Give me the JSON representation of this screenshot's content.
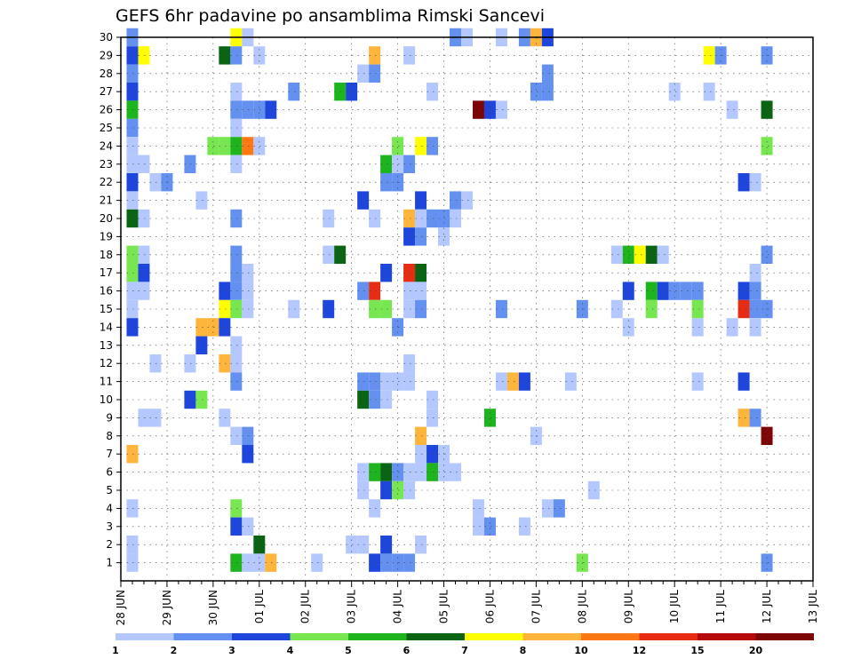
{
  "chart_data": {
    "type": "heatmap",
    "title": "GEFS 6hr padavine po ansamblima Rimski Sancevi",
    "y_ticks": [
      "1",
      "2",
      "3",
      "4",
      "5",
      "6",
      "7",
      "8",
      "9",
      "10",
      "11",
      "12",
      "13",
      "14",
      "15",
      "16",
      "17",
      "18",
      "19",
      "20",
      "21",
      "22",
      "23",
      "24",
      "25",
      "26",
      "27",
      "28",
      "29",
      "30"
    ],
    "x_ticks": [
      "28 JUN",
      "29 JUN",
      "30 JUN",
      "01 JUL",
      "02 JUL",
      "03 JUL",
      "04 JUL",
      "05 JUL",
      "06 JUL",
      "07 JUL",
      "08 JUL",
      "09 JUL",
      "10 JUL",
      "11 JUL",
      "12 JUL",
      "13 JUL"
    ],
    "x_range": [
      "28 JUN 00",
      "13 JUL 00"
    ],
    "time_step_hours": 6,
    "ylim": [
      0,
      30
    ],
    "grid": true,
    "colorbar": {
      "boundaries": [
        1,
        2,
        3,
        4,
        5,
        6,
        7,
        8,
        10,
        12,
        15,
        20
      ],
      "labels": [
        "1",
        "2",
        "3",
        "4",
        "5",
        "6",
        "7",
        "8",
        "10",
        "12",
        "15",
        "20"
      ],
      "colors": [
        "#b4c8ff",
        "#6490f0",
        "#1e46dc",
        "#78e650",
        "#1eb41e",
        "#0a6414",
        "#ffff00",
        "#ffb43c",
        "#ff7814",
        "#e62d14",
        "#b40a0a",
        "#7d0505"
      ]
    },
    "cells_note": "each cell = [6-hour step index from 28 JUN 00, ensemble member, precipitation class 0-11 (index into colorbar.colors)]",
    "cells": [
      [
        1,
        1,
        0
      ],
      [
        1,
        30,
        1
      ],
      [
        1,
        29,
        2
      ],
      [
        1,
        28,
        1
      ],
      [
        1,
        27,
        2
      ],
      [
        1,
        26,
        4
      ],
      [
        1,
        25,
        1
      ],
      [
        1,
        24,
        0
      ],
      [
        1,
        23,
        0
      ],
      [
        1,
        22,
        2
      ],
      [
        1,
        21,
        0
      ],
      [
        1,
        20,
        5
      ],
      [
        1,
        18,
        3
      ],
      [
        1,
        17,
        3
      ],
      [
        1,
        16,
        0
      ],
      [
        1,
        15,
        0
      ],
      [
        1,
        14,
        2
      ],
      [
        1,
        7,
        7
      ],
      [
        1,
        4,
        0
      ],
      [
        1,
        2,
        0
      ],
      [
        2,
        29,
        6
      ],
      [
        2,
        23,
        0
      ],
      [
        2,
        20,
        0
      ],
      [
        2,
        18,
        0
      ],
      [
        2,
        17,
        2
      ],
      [
        2,
        16,
        0
      ],
      [
        2,
        9,
        0
      ],
      [
        3,
        22,
        0
      ],
      [
        3,
        12,
        0
      ],
      [
        3,
        9,
        0
      ],
      [
        4,
        22,
        1
      ],
      [
        6,
        23,
        1
      ],
      [
        6,
        12,
        0
      ],
      [
        6,
        10,
        2
      ],
      [
        7,
        21,
        0
      ],
      [
        7,
        14,
        7
      ],
      [
        7,
        13,
        2
      ],
      [
        7,
        10,
        3
      ],
      [
        8,
        24,
        3
      ],
      [
        8,
        14,
        7
      ],
      [
        9,
        29,
        5
      ],
      [
        9,
        24,
        3
      ],
      [
        9,
        16,
        2
      ],
      [
        9,
        15,
        6
      ],
      [
        9,
        14,
        2
      ],
      [
        9,
        12,
        7
      ],
      [
        9,
        9,
        0
      ],
      [
        10,
        30,
        6
      ],
      [
        10,
        29,
        1
      ],
      [
        10,
        27,
        0
      ],
      [
        10,
        26,
        1
      ],
      [
        10,
        25,
        0
      ],
      [
        10,
        24,
        4
      ],
      [
        10,
        23,
        0
      ],
      [
        10,
        20,
        1
      ],
      [
        10,
        18,
        1
      ],
      [
        10,
        17,
        1
      ],
      [
        10,
        16,
        1
      ],
      [
        10,
        15,
        3
      ],
      [
        10,
        13,
        0
      ],
      [
        10,
        12,
        0
      ],
      [
        10,
        11,
        1
      ],
      [
        10,
        8,
        0
      ],
      [
        10,
        4,
        3
      ],
      [
        10,
        3,
        2
      ],
      [
        10,
        1,
        4
      ],
      [
        11,
        30,
        0
      ],
      [
        11,
        26,
        1
      ],
      [
        11,
        24,
        8
      ],
      [
        11,
        17,
        0
      ],
      [
        11,
        16,
        0
      ],
      [
        11,
        15,
        0
      ],
      [
        11,
        8,
        1
      ],
      [
        11,
        7,
        2
      ],
      [
        11,
        3,
        0
      ],
      [
        11,
        1,
        0
      ],
      [
        12,
        29,
        0
      ],
      [
        12,
        26,
        1
      ],
      [
        12,
        24,
        0
      ],
      [
        12,
        2,
        5
      ],
      [
        12,
        1,
        0
      ],
      [
        13,
        26,
        2
      ],
      [
        13,
        1,
        7
      ],
      [
        15,
        27,
        1
      ],
      [
        15,
        15,
        0
      ],
      [
        17,
        1,
        0
      ],
      [
        18,
        20,
        0
      ],
      [
        18,
        18,
        0
      ],
      [
        18,
        15,
        2
      ],
      [
        19,
        27,
        4
      ],
      [
        19,
        18,
        5
      ],
      [
        20,
        27,
        2
      ],
      [
        20,
        2,
        0
      ],
      [
        21,
        28,
        0
      ],
      [
        21,
        21,
        2
      ],
      [
        21,
        16,
        1
      ],
      [
        21,
        11,
        1
      ],
      [
        21,
        10,
        5
      ],
      [
        21,
        6,
        0
      ],
      [
        21,
        5,
        0
      ],
      [
        21,
        2,
        0
      ],
      [
        22,
        29,
        7
      ],
      [
        22,
        28,
        1
      ],
      [
        22,
        20,
        0
      ],
      [
        22,
        16,
        9
      ],
      [
        22,
        15,
        3
      ],
      [
        22,
        11,
        1
      ],
      [
        22,
        10,
        1
      ],
      [
        22,
        6,
        4
      ],
      [
        22,
        4,
        0
      ],
      [
        22,
        1,
        2
      ],
      [
        23,
        23,
        4
      ],
      [
        23,
        22,
        1
      ],
      [
        23,
        17,
        2
      ],
      [
        23,
        15,
        3
      ],
      [
        23,
        11,
        0
      ],
      [
        23,
        10,
        0
      ],
      [
        23,
        6,
        5
      ],
      [
        23,
        5,
        2
      ],
      [
        23,
        2,
        2
      ],
      [
        23,
        1,
        1
      ],
      [
        24,
        23,
        0
      ],
      [
        24,
        22,
        1
      ],
      [
        24,
        24,
        3
      ],
      [
        24,
        14,
        1
      ],
      [
        24,
        11,
        0
      ],
      [
        24,
        6,
        1
      ],
      [
        24,
        5,
        3
      ],
      [
        24,
        1,
        1
      ],
      [
        25,
        29,
        0
      ],
      [
        25,
        23,
        1
      ],
      [
        25,
        20,
        7
      ],
      [
        25,
        19,
        2
      ],
      [
        25,
        17,
        9
      ],
      [
        25,
        16,
        0
      ],
      [
        25,
        15,
        0
      ],
      [
        25,
        12,
        0
      ],
      [
        25,
        11,
        0
      ],
      [
        25,
        6,
        0
      ],
      [
        25,
        5,
        0
      ],
      [
        25,
        1,
        1
      ],
      [
        26,
        24,
        6
      ],
      [
        26,
        21,
        2
      ],
      [
        26,
        20,
        0
      ],
      [
        26,
        19,
        1
      ],
      [
        26,
        17,
        5
      ],
      [
        26,
        16,
        0
      ],
      [
        26,
        15,
        1
      ],
      [
        26,
        8,
        7
      ],
      [
        26,
        7,
        0
      ],
      [
        26,
        6,
        0
      ],
      [
        26,
        2,
        0
      ],
      [
        27,
        27,
        0
      ],
      [
        27,
        24,
        1
      ],
      [
        27,
        20,
        1
      ],
      [
        27,
        10,
        0
      ],
      [
        27,
        9,
        0
      ],
      [
        27,
        7,
        2
      ],
      [
        27,
        6,
        4
      ],
      [
        28,
        20,
        1
      ],
      [
        28,
        19,
        0
      ],
      [
        28,
        7,
        0
      ],
      [
        28,
        6,
        0
      ],
      [
        29,
        30,
        1
      ],
      [
        29,
        21,
        1
      ],
      [
        29,
        20,
        0
      ],
      [
        29,
        6,
        0
      ],
      [
        30,
        30,
        0
      ],
      [
        30,
        21,
        0
      ],
      [
        31,
        26,
        11
      ],
      [
        31,
        4,
        0
      ],
      [
        31,
        3,
        0
      ],
      [
        32,
        26,
        2
      ],
      [
        32,
        3,
        1
      ],
      [
        32,
        9,
        4
      ],
      [
        33,
        26,
        0
      ],
      [
        33,
        30,
        0
      ],
      [
        33,
        15,
        1
      ],
      [
        33,
        11,
        0
      ],
      [
        34,
        11,
        7
      ],
      [
        35,
        30,
        1
      ],
      [
        35,
        11,
        2
      ],
      [
        35,
        3,
        0
      ],
      [
        36,
        30,
        7
      ],
      [
        36,
        27,
        1
      ],
      [
        36,
        8,
        0
      ],
      [
        37,
        30,
        2
      ],
      [
        37,
        28,
        1
      ],
      [
        37,
        27,
        1
      ],
      [
        37,
        4,
        0
      ],
      [
        38,
        4,
        1
      ],
      [
        39,
        11,
        0
      ],
      [
        40,
        15,
        1
      ],
      [
        40,
        1,
        3
      ],
      [
        41,
        5,
        0
      ],
      [
        43,
        18,
        0
      ],
      [
        43,
        15,
        0
      ],
      [
        44,
        18,
        4
      ],
      [
        44,
        16,
        2
      ],
      [
        44,
        14,
        0
      ],
      [
        45,
        18,
        6
      ],
      [
        46,
        18,
        5
      ],
      [
        46,
        16,
        4
      ],
      [
        46,
        15,
        3
      ],
      [
        47,
        18,
        0
      ],
      [
        47,
        16,
        2
      ],
      [
        48,
        27,
        0
      ],
      [
        48,
        16,
        1
      ],
      [
        49,
        16,
        1
      ],
      [
        50,
        16,
        1
      ],
      [
        50,
        15,
        3
      ],
      [
        50,
        14,
        0
      ],
      [
        50,
        11,
        0
      ],
      [
        51,
        27,
        0
      ],
      [
        51,
        29,
        6
      ],
      [
        52,
        29,
        1
      ],
      [
        53,
        26,
        0
      ],
      [
        53,
        14,
        0
      ],
      [
        54,
        22,
        2
      ],
      [
        54,
        11,
        2
      ],
      [
        54,
        9,
        7
      ],
      [
        54,
        16,
        2
      ],
      [
        54,
        15,
        9
      ],
      [
        55,
        22,
        0
      ],
      [
        55,
        17,
        0
      ],
      [
        55,
        16,
        1
      ],
      [
        55,
        15,
        1
      ],
      [
        55,
        14,
        0
      ],
      [
        55,
        9,
        1
      ],
      [
        56,
        29,
        1
      ],
      [
        56,
        26,
        5
      ],
      [
        56,
        24,
        3
      ],
      [
        56,
        18,
        1
      ],
      [
        56,
        15,
        1
      ],
      [
        56,
        8,
        11
      ],
      [
        56,
        1,
        1
      ]
    ]
  }
}
